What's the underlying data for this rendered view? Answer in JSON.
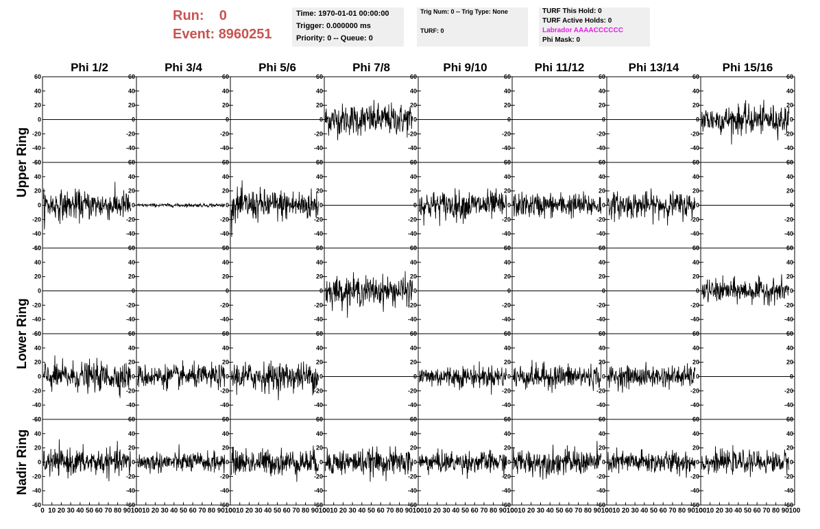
{
  "header": {
    "run_label": "Run:",
    "run_value": "0",
    "event_label": "Event:",
    "event_value": "8960251"
  },
  "info_box_1": {
    "time": "Time: 1970-01-01 00:00:00",
    "trigger": "Trigger: 0.000000 ms",
    "priority": "Priority: 0 -- Queue: 0"
  },
  "info_box_2": {
    "trig": "Trig Num: 0 -- Trig Type: None",
    "turf": "TURF: 0"
  },
  "info_box_3": {
    "turf_this_hold": "TURF This Hold: 0",
    "turf_active_holds": "TURF Active Holds: 0",
    "labrador": "Labrador AAAACCCCCC",
    "phi_mask": "Phi Mask: 0"
  },
  "colors": {
    "header_red": "#c9534f",
    "labrador_magenta": "#e61ce6",
    "info_bg": "#efefef",
    "trace": "#000000"
  },
  "chart_data": {
    "type": "line",
    "columns": [
      "Phi 1/2",
      "Phi 3/4",
      "Phi 5/6",
      "Phi 7/8",
      "Phi 9/10",
      "Phi 11/12",
      "Phi 13/14",
      "Phi 15/16"
    ],
    "row_groups": [
      {
        "label": "Upper Ring",
        "rows": [
          0,
          1
        ]
      },
      {
        "label": "Lower Ring",
        "rows": [
          2,
          3
        ]
      },
      {
        "label": "Nadir Ring",
        "rows": [
          4
        ]
      }
    ],
    "ylim": [
      -60,
      60
    ],
    "yticks": [
      "60",
      "40",
      "20",
      "0",
      "-20",
      "-40",
      "-60"
    ],
    "xlim": [
      0,
      100
    ],
    "xticks": [
      "0",
      "10",
      "20",
      "30",
      "40",
      "50",
      "60",
      "70",
      "80",
      "90",
      "100"
    ],
    "x_samples": 260,
    "grid": false,
    "amplitude_rms": [
      [
        0,
        0,
        0,
        11,
        0,
        0,
        0,
        10
      ],
      [
        10,
        1.2,
        11,
        0,
        10,
        8.5,
        9,
        0
      ],
      [
        0,
        0,
        0,
        10,
        0,
        0,
        0,
        8
      ],
      [
        10,
        8,
        10,
        0,
        7.5,
        8.5,
        7.5,
        0
      ],
      [
        9,
        7,
        9,
        9,
        7.5,
        9,
        8,
        7.5
      ]
    ]
  }
}
